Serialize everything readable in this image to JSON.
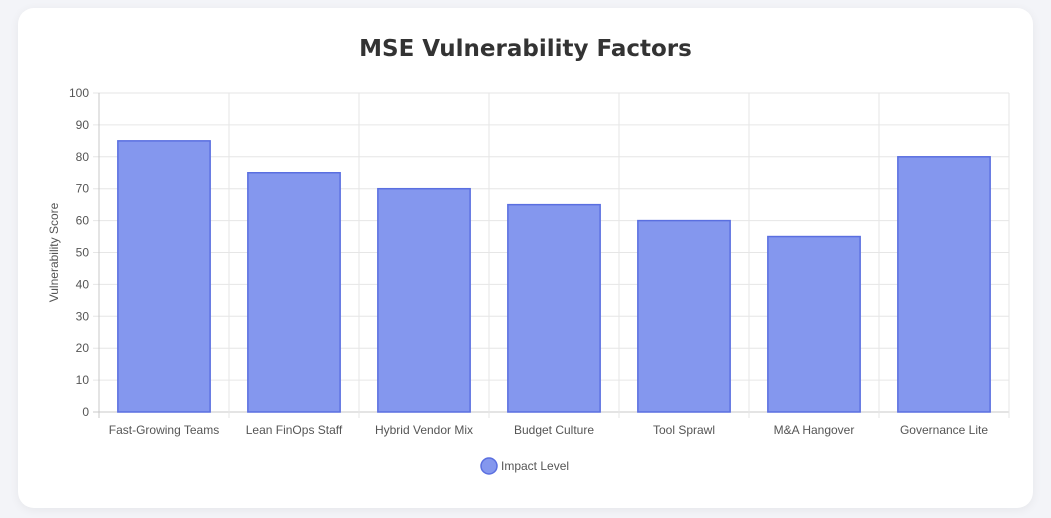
{
  "chart_data": {
    "type": "bar",
    "title": "MSE Vulnerability Factors",
    "xlabel": "",
    "ylabel": "Vulnerability Score",
    "categories": [
      "Fast-Growing Teams",
      "Lean FinOps Staff",
      "Hybrid Vendor Mix",
      "Budget Culture",
      "Tool Sprawl",
      "M&A Hangover",
      "Governance Lite"
    ],
    "series": [
      {
        "name": "Impact Level",
        "values": [
          85,
          75,
          70,
          65,
          60,
          55,
          80
        ]
      }
    ],
    "ylim": [
      0,
      100
    ],
    "yticks": [
      0,
      10,
      20,
      30,
      40,
      50,
      60,
      70,
      80,
      90,
      100
    ],
    "grid": true,
    "legend_position": "bottom",
    "colors": {
      "bar_fill": "#8497ee",
      "bar_stroke": "#5a6fe0",
      "grid": "#e6e6e6",
      "axis": "#c8c8c8"
    }
  }
}
